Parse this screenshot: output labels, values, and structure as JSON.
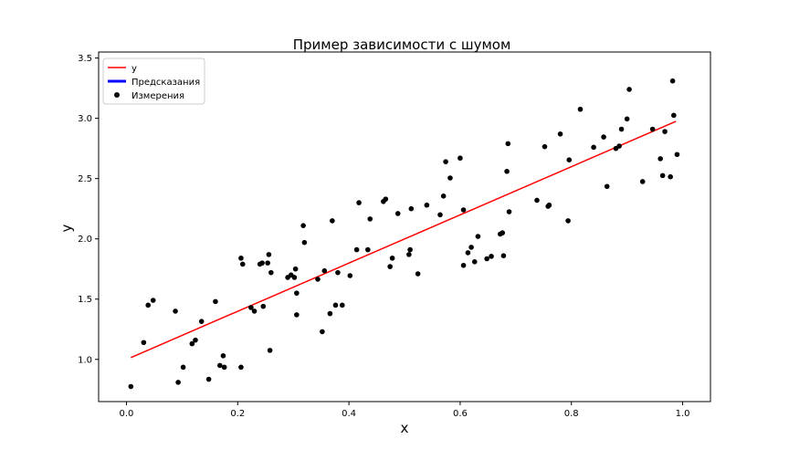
{
  "chart_data": {
    "type": "scatter",
    "title": "Пример зависимости с шумом",
    "xlabel": "x",
    "ylabel": "y",
    "xlim": [
      -0.05,
      1.05
    ],
    "ylim": [
      0.65,
      3.55
    ],
    "xticks": [
      0.0,
      0.2,
      0.4,
      0.6,
      0.8,
      1.0
    ],
    "xtick_labels": [
      "0.0",
      "0.2",
      "0.4",
      "0.6",
      "0.8",
      "1.0"
    ],
    "yticks": [
      1.0,
      1.5,
      2.0,
      2.5,
      3.0,
      3.5
    ],
    "ytick_labels": [
      "1.0",
      "1.5",
      "2.0",
      "2.5",
      "3.0",
      "3.5"
    ],
    "grid": false,
    "legend_position": "top-left",
    "legend": [
      {
        "label": "y",
        "kind": "line",
        "color": "#ff0000"
      },
      {
        "label": "Предсказания",
        "kind": "line",
        "color": "#0000ff"
      },
      {
        "label": "Измерения",
        "kind": "marker",
        "color": "#000000"
      }
    ],
    "line": {
      "name": "y",
      "color": "#ff0000",
      "x": [
        0.008,
        0.988
      ],
      "y": [
        1.015,
        2.975
      ]
    },
    "points": {
      "name": "Измерения",
      "color": "#000000",
      "x": [
        0.008,
        0.031,
        0.039,
        0.048,
        0.088,
        0.093,
        0.102,
        0.118,
        0.124,
        0.135,
        0.148,
        0.16,
        0.168,
        0.174,
        0.176,
        0.206,
        0.206,
        0.209,
        0.224,
        0.23,
        0.24,
        0.244,
        0.246,
        0.254,
        0.256,
        0.258,
        0.26,
        0.29,
        0.296,
        0.302,
        0.304,
        0.306,
        0.306,
        0.318,
        0.32,
        0.344,
        0.352,
        0.356,
        0.366,
        0.37,
        0.376,
        0.38,
        0.388,
        0.402,
        0.414,
        0.418,
        0.434,
        0.438,
        0.462,
        0.466,
        0.474,
        0.478,
        0.488,
        0.508,
        0.51,
        0.512,
        0.524,
        0.54,
        0.564,
        0.57,
        0.574,
        0.582,
        0.6,
        0.606,
        0.606,
        0.614,
        0.62,
        0.626,
        0.632,
        0.648,
        0.656,
        0.672,
        0.676,
        0.678,
        0.684,
        0.686,
        0.688,
        0.738,
        0.752,
        0.758,
        0.76,
        0.78,
        0.794,
        0.796,
        0.816,
        0.84,
        0.858,
        0.864,
        0.88,
        0.886,
        0.89,
        0.9,
        0.904,
        0.928,
        0.946,
        0.96,
        0.964,
        0.968,
        0.978,
        0.982,
        0.984,
        0.99
      ],
      "y": [
        0.775,
        1.14,
        1.45,
        1.49,
        1.4,
        0.81,
        0.935,
        1.13,
        1.16,
        1.315,
        0.835,
        1.48,
        0.95,
        1.03,
        0.935,
        0.935,
        1.84,
        1.79,
        1.43,
        1.4,
        1.79,
        1.8,
        1.44,
        1.8,
        1.87,
        1.075,
        1.72,
        1.68,
        1.7,
        1.68,
        1.75,
        1.55,
        1.37,
        2.11,
        1.97,
        1.665,
        1.23,
        1.735,
        1.38,
        2.15,
        1.45,
        1.72,
        1.45,
        1.695,
        1.91,
        2.3,
        1.91,
        2.165,
        2.31,
        2.33,
        1.77,
        1.84,
        2.21,
        1.87,
        1.91,
        2.25,
        1.71,
        2.28,
        2.2,
        2.355,
        2.64,
        2.505,
        2.67,
        2.24,
        1.78,
        1.885,
        1.93,
        1.81,
        2.02,
        1.835,
        1.855,
        2.04,
        2.05,
        1.86,
        2.56,
        2.79,
        2.225,
        2.32,
        2.765,
        2.27,
        2.28,
        2.87,
        2.15,
        2.655,
        3.075,
        2.76,
        2.845,
        2.435,
        2.75,
        2.77,
        2.91,
        2.995,
        3.24,
        2.475,
        2.91,
        2.665,
        2.525,
        2.89,
        2.515,
        3.31,
        3.025,
        2.7
      ]
    }
  }
}
